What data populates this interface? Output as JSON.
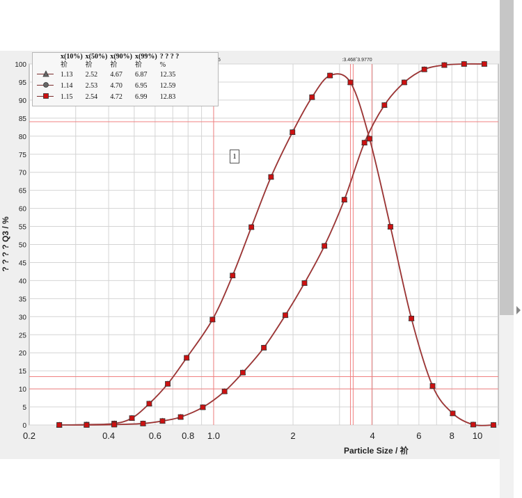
{
  "chart_data": {
    "type": "line",
    "xscale": "log",
    "xlim": [
      0.2,
      12
    ],
    "ylim": [
      0,
      100
    ],
    "yticks": [
      0,
      5,
      10,
      15,
      20,
      25,
      30,
      35,
      40,
      45,
      50,
      55,
      60,
      65,
      70,
      75,
      80,
      85,
      90,
      95,
      100
    ],
    "xtick_labels": [
      {
        "value": 0.2,
        "label": "0.2"
      },
      {
        "value": 0.4,
        "label": "0.4"
      },
      {
        "value": 0.6,
        "label": "0.6"
      },
      {
        "value": 0.8,
        "label": "0.8"
      },
      {
        "value": 1.0,
        "label": "1.0"
      },
      {
        "value": 2,
        "label": "2"
      },
      {
        "value": 4,
        "label": "4"
      },
      {
        "value": 6,
        "label": "6"
      },
      {
        "value": 8,
        "label": "8"
      },
      {
        "value": 10,
        "label": "10"
      }
    ],
    "xlabel": "Particle Size / 祄",
    "ylabel": "? ? ? ?  Q3 / %",
    "grid": true,
    "colors": {
      "curve": "#a33030",
      "marker_fill": "#cc1111",
      "marker_edge": "#333333",
      "ref_line": "#f08080"
    },
    "density_points": [
      [
        0.26,
        0
      ],
      [
        0.33,
        0.1
      ],
      [
        0.42,
        0.4
      ],
      [
        0.49,
        1.9
      ],
      [
        0.57,
        5.9
      ],
      [
        0.67,
        11.4
      ],
      [
        0.79,
        18.6
      ],
      [
        0.99,
        29.2
      ],
      [
        1.18,
        41.4
      ],
      [
        1.39,
        54.8
      ],
      [
        1.65,
        68.7
      ],
      [
        1.99,
        81.1
      ],
      [
        2.36,
        90.8
      ],
      [
        2.76,
        96.8
      ],
      [
        3.3,
        94.9
      ],
      [
        3.9,
        79.3
      ],
      [
        4.68,
        54.9
      ],
      [
        5.62,
        29.5
      ],
      [
        6.76,
        10.8
      ],
      [
        8.06,
        3.2
      ],
      [
        9.64,
        0.1
      ],
      [
        11.5,
        0
      ]
    ],
    "cumulative_points": [
      [
        0.26,
        0
      ],
      [
        0.33,
        0
      ],
      [
        0.42,
        0.1
      ],
      [
        0.54,
        0.4
      ],
      [
        0.64,
        1.1
      ],
      [
        0.75,
        2.2
      ],
      [
        0.91,
        4.9
      ],
      [
        1.1,
        9.3
      ],
      [
        1.29,
        14.5
      ],
      [
        1.55,
        21.4
      ],
      [
        1.87,
        30.4
      ],
      [
        2.21,
        39.3
      ],
      [
        2.63,
        49.6
      ],
      [
        3.13,
        62.4
      ],
      [
        3.73,
        78.2
      ],
      [
        4.44,
        88.6
      ],
      [
        5.28,
        94.9
      ],
      [
        6.29,
        98.5
      ],
      [
        7.49,
        99.7
      ],
      [
        8.9,
        100
      ],
      [
        10.62,
        100
      ]
    ],
    "marker_shapes": [
      "triangle",
      "circle",
      "square"
    ],
    "ref_lines": {
      "vertical": [
        1.0,
        3.3,
        3.38,
        3.98
      ],
      "horizontal": [
        84,
        13.4,
        10
      ]
    },
    "top_label": ":3.468ˆ3.9770",
    "top_label_left": "5",
    "legend": {
      "headers": [
        "x(10%)",
        "x(50%)",
        "x(90%)",
        "x(99%)",
        "? ? ? ?"
      ],
      "units": [
        "祄",
        "祄",
        "祄",
        "祄",
        "%"
      ],
      "rows": [
        {
          "marker": "triangle",
          "values": [
            "1.13",
            "2.52",
            "4.67",
            "6.87",
            "12.35"
          ]
        },
        {
          "marker": "circle",
          "values": [
            "1.14",
            "2.53",
            "4.70",
            "6.95",
            "12.59"
          ]
        },
        {
          "marker": "square",
          "values": [
            "1.15",
            "2.54",
            "4.72",
            "6.99",
            "12.83"
          ]
        }
      ]
    },
    "cursor_label": "1"
  }
}
